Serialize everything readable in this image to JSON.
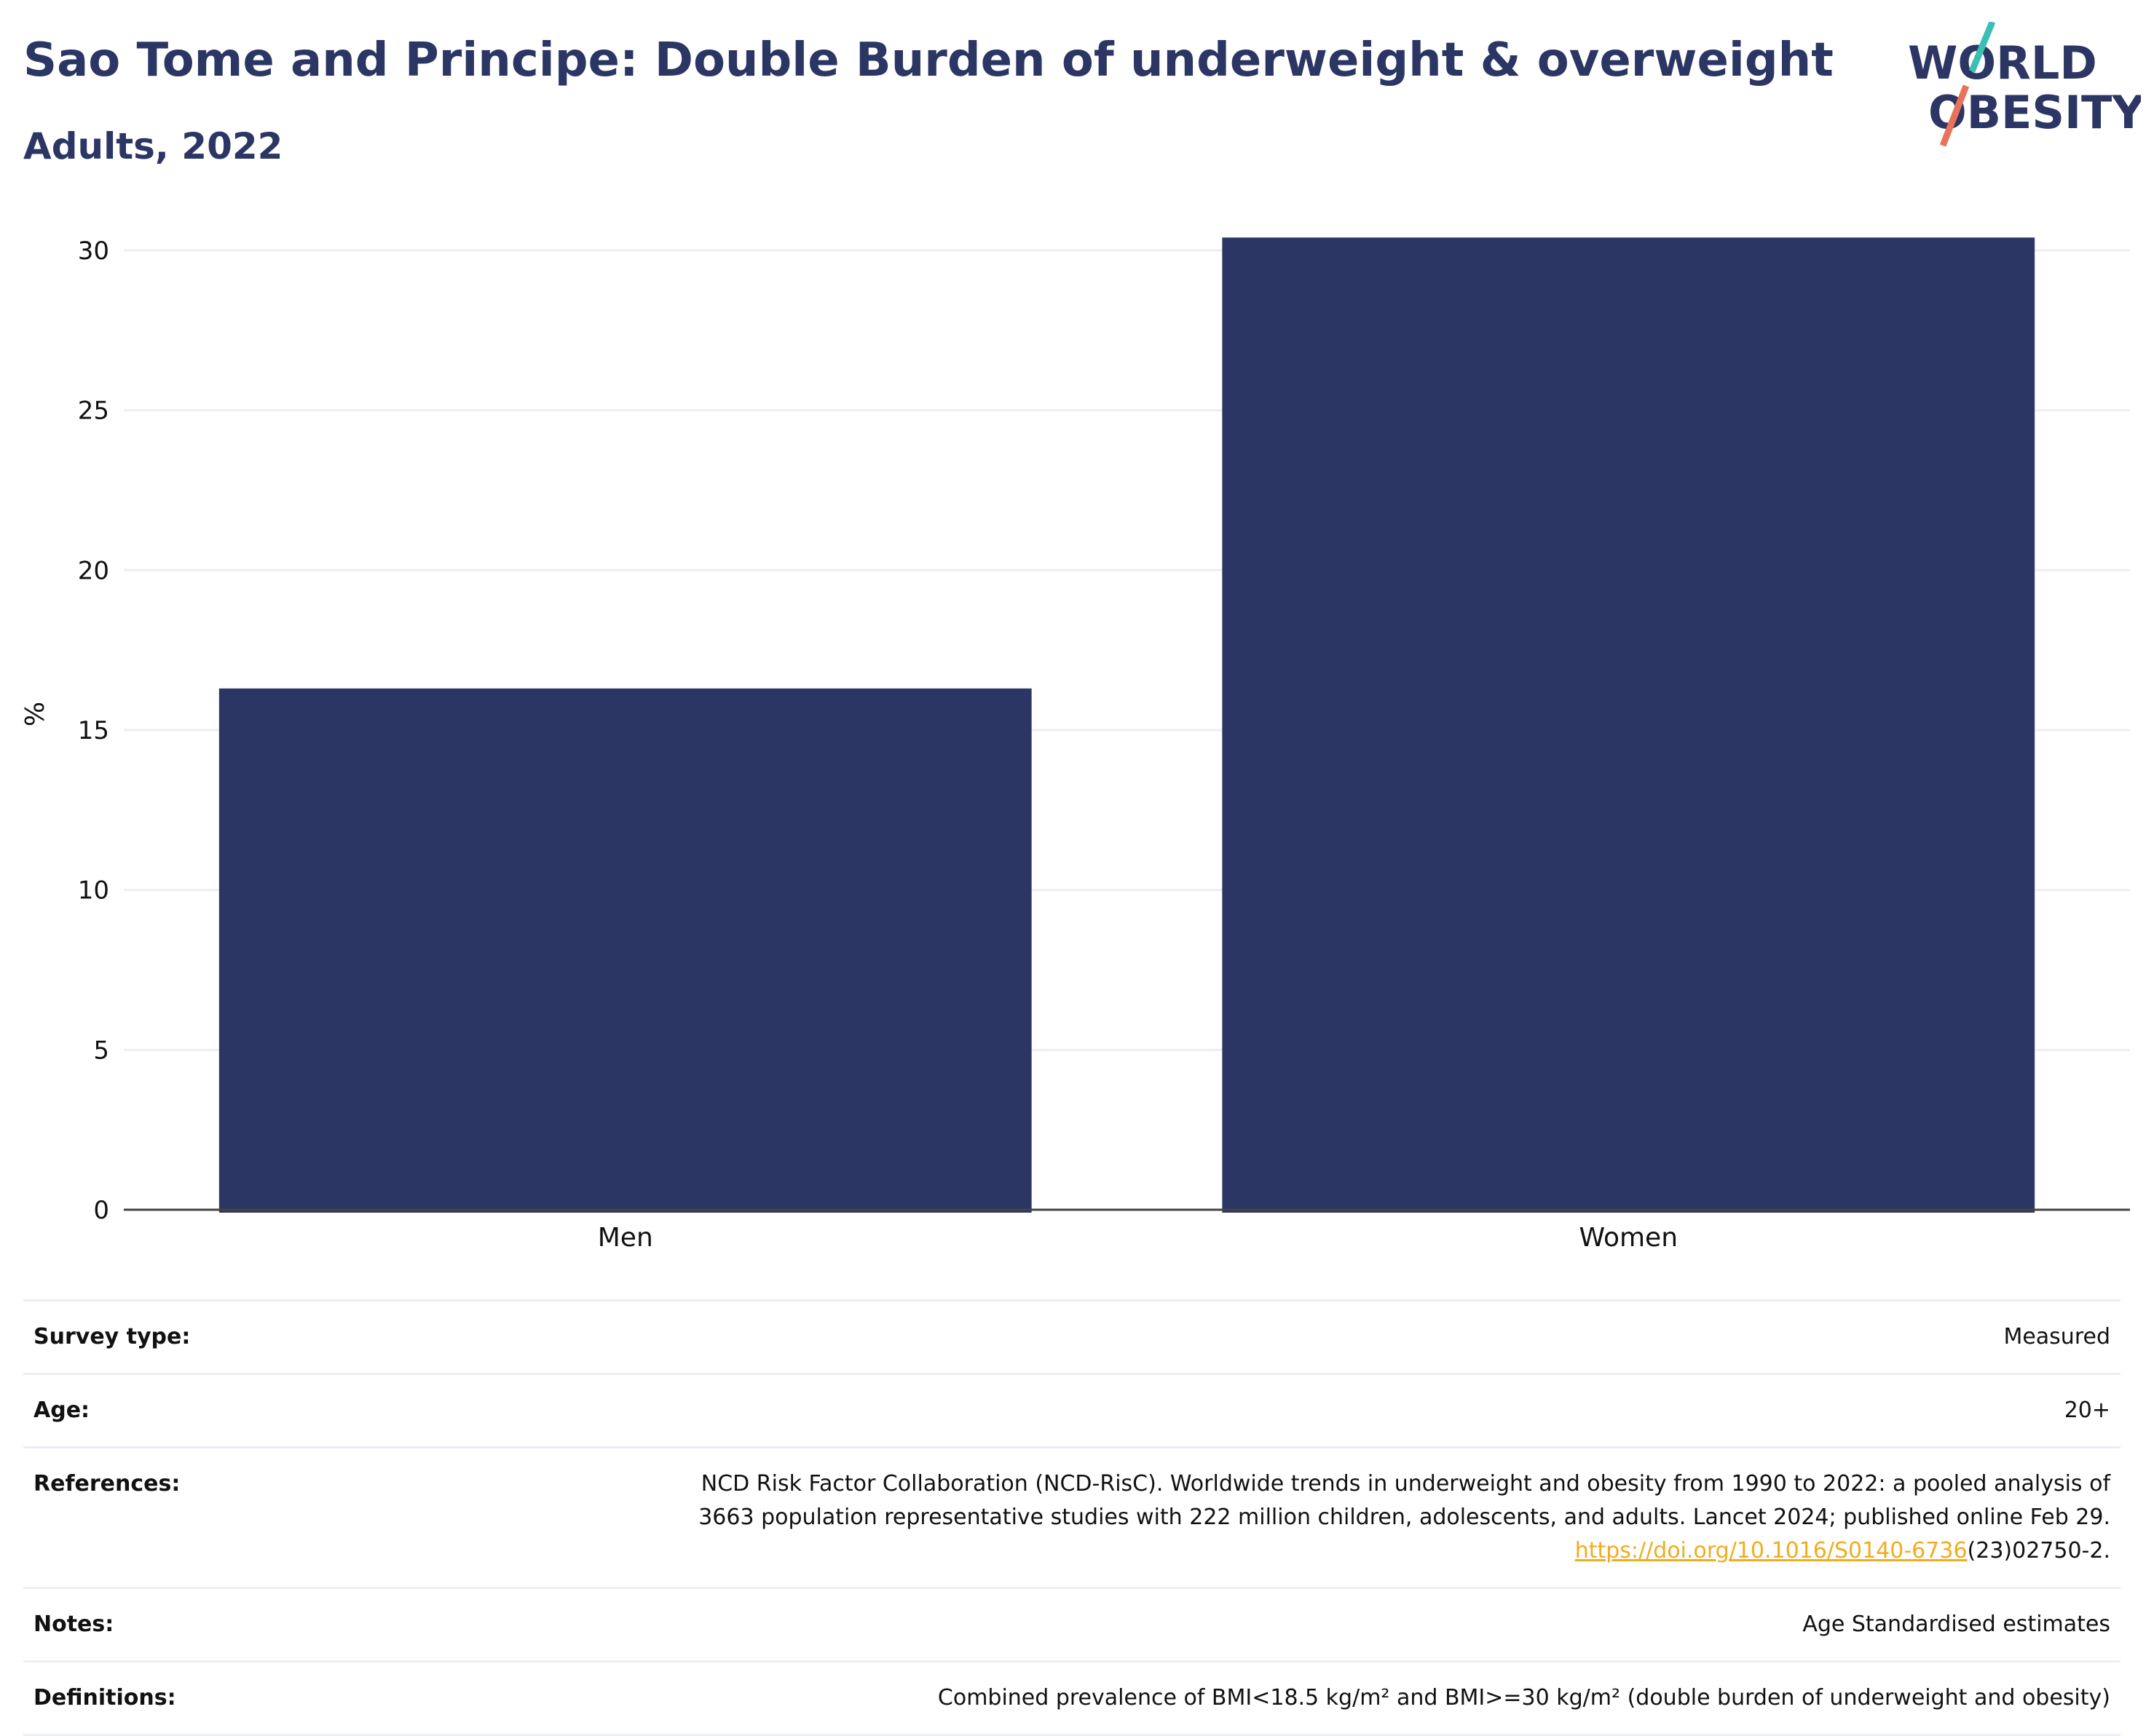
{
  "header": {
    "title": "Sao Tome and Principe: Double Burden of underweight & overweight",
    "subtitle": "Adults, 2022"
  },
  "logo": {
    "line1": "WORLD",
    "line2": "OBESITY",
    "accent_colors": [
      "#3bbfb3",
      "#e8735a"
    ]
  },
  "colors": {
    "bar": "#2b3664",
    "title": "#2b3664",
    "link": "#f0ad1e",
    "gridline": "#eceef4"
  },
  "chart_data": {
    "type": "bar",
    "categories": [
      "Men",
      "Women"
    ],
    "values": [
      16.3,
      30.4
    ],
    "ylabel": "%",
    "xlabel": "",
    "ylim": [
      0,
      31
    ],
    "yticks": [
      0,
      5,
      10,
      15,
      20,
      25,
      30
    ],
    "grid": true
  },
  "meta": {
    "survey_type": {
      "label": "Survey type:",
      "value": "Measured"
    },
    "age": {
      "label": "Age:",
      "value": "20+"
    },
    "references": {
      "label": "References:",
      "line1": "NCD Risk Factor Collaboration (NCD-RisC). Worldwide trends in underweight and obesity from 1990 to 2022: a pooled analysis of",
      "line2": "3663 population representative studies with 222 million children, adolescents, and adults. Lancet 2024; published online Feb 29.",
      "link": "https://doi.org/10.1016/S0140-6736",
      "link_suffix": "(23)02750-2."
    },
    "notes": {
      "label": "Notes:",
      "value": "Age Standardised estimates"
    },
    "definitions": {
      "label": "Definitions:",
      "value": "Combined prevalence of BMI<18.5 kg/m² and BMI>=30 kg/m² (double burden of underweight and obesity)"
    }
  }
}
